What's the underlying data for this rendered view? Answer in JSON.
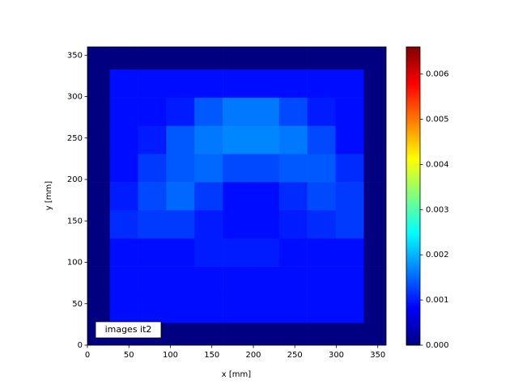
{
  "chart_data": {
    "type": "heatmap",
    "xlabel": "x [mm]",
    "ylabel": "y [mm]",
    "xlim": [
      0,
      360
    ],
    "ylim": [
      0,
      360
    ],
    "xticks": [
      0,
      50,
      100,
      150,
      200,
      250,
      300,
      350
    ],
    "yticks": [
      0,
      50,
      100,
      150,
      200,
      250,
      300,
      350
    ],
    "xedges": [
      0,
      27,
      61,
      95,
      129,
      163,
      197,
      231,
      265,
      299,
      333,
      360
    ],
    "yedges": [
      0,
      27,
      61,
      95,
      129,
      163,
      197,
      231,
      265,
      299,
      333,
      360
    ],
    "z": [
      [
        0,
        0,
        0,
        0,
        0,
        0,
        0,
        0,
        0,
        0,
        0
      ],
      [
        0,
        0.0009,
        0.0009,
        0.0009,
        0.0009,
        0.0009,
        0.0009,
        0.0009,
        0.0009,
        0.0009,
        0
      ],
      [
        0,
        0.0009,
        0.0009,
        0.0009,
        0.0009,
        0.0009,
        0.0009,
        0.0009,
        0.0009,
        0.0009,
        0
      ],
      [
        0,
        0.0009,
        0.0009,
        0.0009,
        0.001,
        0.001,
        0.001,
        0.0009,
        0.0009,
        0.0009,
        0
      ],
      [
        0,
        0.0011,
        0.0012,
        0.0012,
        0.001,
        0.0009,
        0.0009,
        0.001,
        0.0011,
        0.0012,
        0
      ],
      [
        0,
        0.001,
        0.0013,
        0.0015,
        0.0012,
        0.0009,
        0.0009,
        0.0011,
        0.0013,
        0.0012,
        0
      ],
      [
        0,
        0.0009,
        0.0012,
        0.0014,
        0.0015,
        0.0013,
        0.0013,
        0.0014,
        0.0014,
        0.0011,
        0
      ],
      [
        0,
        0.0009,
        0.001,
        0.0014,
        0.0016,
        0.0017,
        0.0017,
        0.0016,
        0.0013,
        0.0009,
        0
      ],
      [
        0,
        0.0009,
        0.0009,
        0.001,
        0.0014,
        0.0016,
        0.0016,
        0.0013,
        0.001,
        0.0009,
        0
      ],
      [
        0,
        0.0009,
        0.0009,
        0.0009,
        0.0009,
        0.0009,
        0.0009,
        0.0009,
        0.0009,
        0.0009,
        0
      ],
      [
        0,
        0,
        0,
        0,
        0,
        0,
        0,
        0,
        0,
        0,
        0
      ]
    ],
    "colormap": "jet",
    "zlim": [
      0,
      0.0066
    ],
    "zticks": [
      {
        "value": 0,
        "label": "0.000"
      },
      {
        "value": 0.001,
        "label": "0.001"
      },
      {
        "value": 0.002,
        "label": "0.002"
      },
      {
        "value": 0.003,
        "label": "0.003"
      },
      {
        "value": 0.004,
        "label": "0.004"
      },
      {
        "value": 0.005,
        "label": "0.005"
      },
      {
        "value": 0.006,
        "label": "0.006"
      }
    ],
    "annotation": "images it2"
  }
}
